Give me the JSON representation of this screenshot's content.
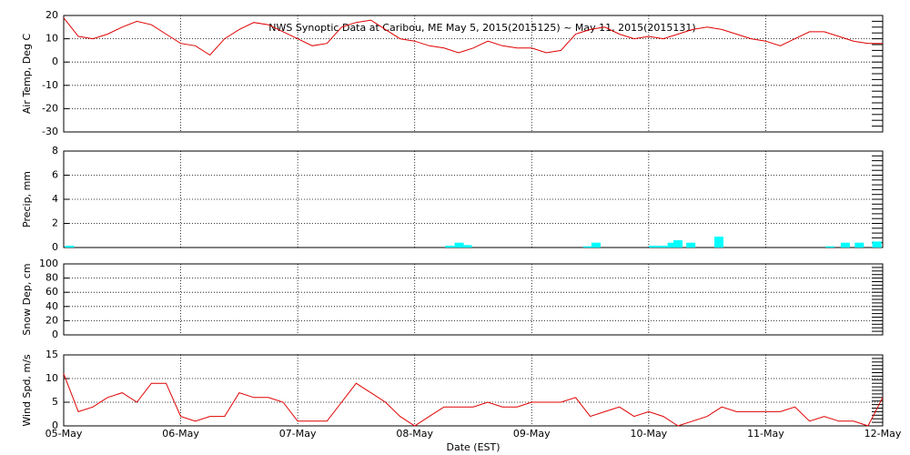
{
  "chart_data": [
    {
      "type": "line",
      "title": "NWS Synoptic Data at Caribou, ME   May  5, 2015(2015125) ~ May 11, 2015(2015131)",
      "ylabel": "Air Temp, Deg C",
      "color": "#e00000",
      "grid": true,
      "xlim": [
        0,
        7
      ],
      "xticks": [
        0,
        1,
        2,
        3,
        4,
        5,
        6,
        7
      ],
      "ylim": [
        -30,
        20
      ],
      "yticks": [
        -30,
        -20,
        -10,
        0,
        10,
        20
      ],
      "x": [
        0,
        0.125,
        0.25,
        0.375,
        0.5,
        0.625,
        0.75,
        0.875,
        1,
        1.125,
        1.25,
        1.375,
        1.5,
        1.625,
        1.75,
        1.875,
        2,
        2.125,
        2.25,
        2.375,
        2.5,
        2.625,
        2.75,
        2.875,
        3,
        3.125,
        3.25,
        3.375,
        3.5,
        3.625,
        3.75,
        3.875,
        4,
        4.125,
        4.25,
        4.375,
        4.5,
        4.625,
        4.75,
        4.875,
        5,
        5.125,
        5.25,
        5.375,
        5.5,
        5.625,
        5.75,
        5.875,
        6,
        6.125,
        6.25,
        6.375,
        6.5,
        6.625,
        6.75,
        6.875,
        7
      ],
      "values": [
        19,
        11,
        10,
        12,
        15,
        17.5,
        16,
        12,
        8,
        7,
        3,
        10,
        14,
        17,
        16,
        13,
        10,
        7,
        8,
        15,
        17,
        18,
        14,
        10,
        9,
        7,
        6,
        4,
        6,
        9,
        7,
        6,
        6,
        4,
        5,
        12,
        14,
        15,
        12,
        10,
        11,
        10,
        12,
        14,
        15,
        14,
        12,
        10,
        9,
        7,
        10,
        13,
        13,
        11,
        9,
        8,
        8
      ]
    },
    {
      "type": "bar",
      "ylabel": "Precip, mm",
      "color": "#00ffff",
      "grid": true,
      "xlim": [
        0,
        7
      ],
      "xticks": [
        0,
        1,
        2,
        3,
        4,
        5,
        6,
        7
      ],
      "ylim": [
        0,
        8
      ],
      "yticks": [
        0,
        2,
        4,
        6,
        8
      ],
      "x": [
        0.05,
        3.3,
        3.38,
        3.45,
        4.48,
        4.55,
        5.04,
        5.12,
        5.2,
        5.25,
        5.36,
        5.6,
        6.55,
        6.68,
        6.8,
        6.95
      ],
      "values": [
        0.15,
        0.15,
        0.4,
        0.2,
        0.1,
        0.4,
        0.15,
        0.15,
        0.4,
        0.6,
        0.4,
        0.9,
        0.1,
        0.4,
        0.4,
        0.5
      ]
    },
    {
      "type": "line",
      "ylabel": "Snow Dep, cm",
      "grid": true,
      "xlim": [
        0,
        7
      ],
      "xticks": [
        0,
        1,
        2,
        3,
        4,
        5,
        6,
        7
      ],
      "ylim": [
        0,
        100
      ],
      "yticks": [
        0,
        20,
        40,
        60,
        80,
        100
      ]
    },
    {
      "type": "line",
      "ylabel": "Wind Spd, m/s",
      "xlabel": "Date (EST)",
      "color": "#e00000",
      "grid": true,
      "xlim": [
        0,
        7
      ],
      "xticks": [
        {
          "value": 0,
          "label": "05-May"
        },
        {
          "value": 1,
          "label": "06-May"
        },
        {
          "value": 2,
          "label": "07-May"
        },
        {
          "value": 3,
          "label": "08-May"
        },
        {
          "value": 4,
          "label": "09-May"
        },
        {
          "value": 5,
          "label": "10-May"
        },
        {
          "value": 6,
          "label": "11-May"
        },
        {
          "value": 7,
          "label": "12-May"
        }
      ],
      "ylim": [
        0,
        15
      ],
      "yticks": [
        0,
        5,
        10,
        15
      ],
      "x": [
        0,
        0.125,
        0.25,
        0.375,
        0.5,
        0.625,
        0.75,
        0.875,
        1,
        1.125,
        1.25,
        1.375,
        1.5,
        1.625,
        1.75,
        1.875,
        2,
        2.125,
        2.25,
        2.375,
        2.5,
        2.625,
        2.75,
        2.875,
        3,
        3.125,
        3.25,
        3.375,
        3.5,
        3.625,
        3.75,
        3.875,
        4,
        4.125,
        4.25,
        4.375,
        4.5,
        4.625,
        4.75,
        4.875,
        5,
        5.125,
        5.25,
        5.375,
        5.5,
        5.625,
        5.75,
        5.875,
        6,
        6.125,
        6.25,
        6.375,
        6.5,
        6.625,
        6.75,
        6.875,
        7
      ],
      "values": [
        11,
        3,
        4,
        6,
        7,
        5,
        9,
        9,
        2,
        1,
        2,
        2,
        7,
        6,
        6,
        5,
        1,
        1,
        1,
        5,
        9,
        7,
        5,
        2,
        0,
        2,
        4,
        4,
        4,
        5,
        4,
        4,
        5,
        5,
        5,
        6,
        2,
        3,
        4,
        2,
        3,
        2,
        0,
        1,
        2,
        4,
        3,
        3,
        3,
        3,
        4,
        1,
        2,
        1,
        1,
        0,
        6
      ]
    }
  ]
}
